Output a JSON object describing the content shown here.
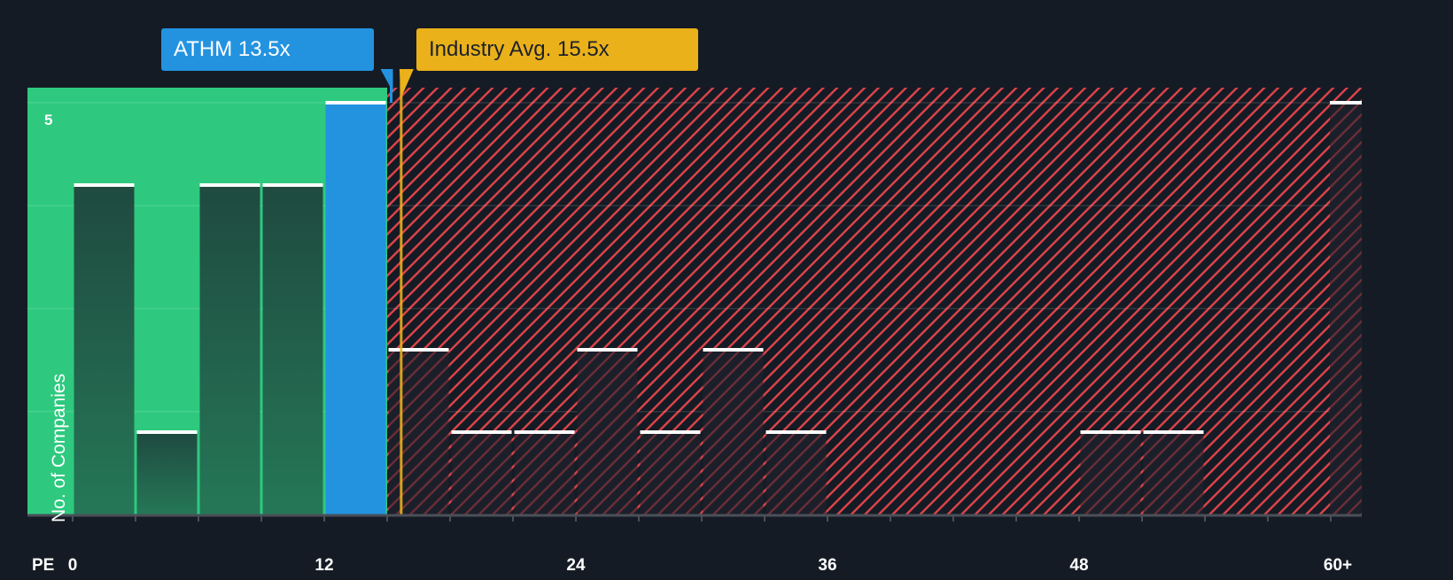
{
  "labels": {
    "company": "ATHM 13.5x",
    "industry": "Industry Avg. 15.5x",
    "y_axis_title": "No. of Companies",
    "x_axis_prefix": "PE",
    "y_top_tick": "5"
  },
  "colors": {
    "background": "#151b24",
    "undervalued_zone": "#2ec97f",
    "overvalued_hatch": "#e0444a",
    "company_bar": "#2393e0",
    "industry_marker": "#ebb11a",
    "bar_cap": "#ffffff"
  },
  "chart_data": {
    "type": "bar",
    "title": "",
    "xlabel": "PE",
    "ylabel": "No. of Companies",
    "x_ticks": [
      "0",
      "12",
      "24",
      "36",
      "48",
      "60+"
    ],
    "bin_width": 3,
    "categories": [
      "0-3",
      "3-6",
      "6-9",
      "9-12",
      "12-15",
      "15-18",
      "18-21",
      "21-24",
      "24-27",
      "27-30",
      "30-33",
      "33-36",
      "36-39",
      "39-42",
      "42-45",
      "45-48",
      "48-51",
      "51-54",
      "54-57",
      "57-60",
      "60+"
    ],
    "values": [
      4,
      1,
      4,
      4,
      5,
      2,
      1,
      1,
      2,
      1,
      2,
      1,
      0,
      0,
      0,
      0,
      1,
      1,
      0,
      0,
      5
    ],
    "highlight": {
      "company": "ATHM",
      "pe": 13.5,
      "bin": "12-15"
    },
    "industry_avg": 15.5,
    "ylim": [
      0,
      5
    ],
    "grid": true
  }
}
